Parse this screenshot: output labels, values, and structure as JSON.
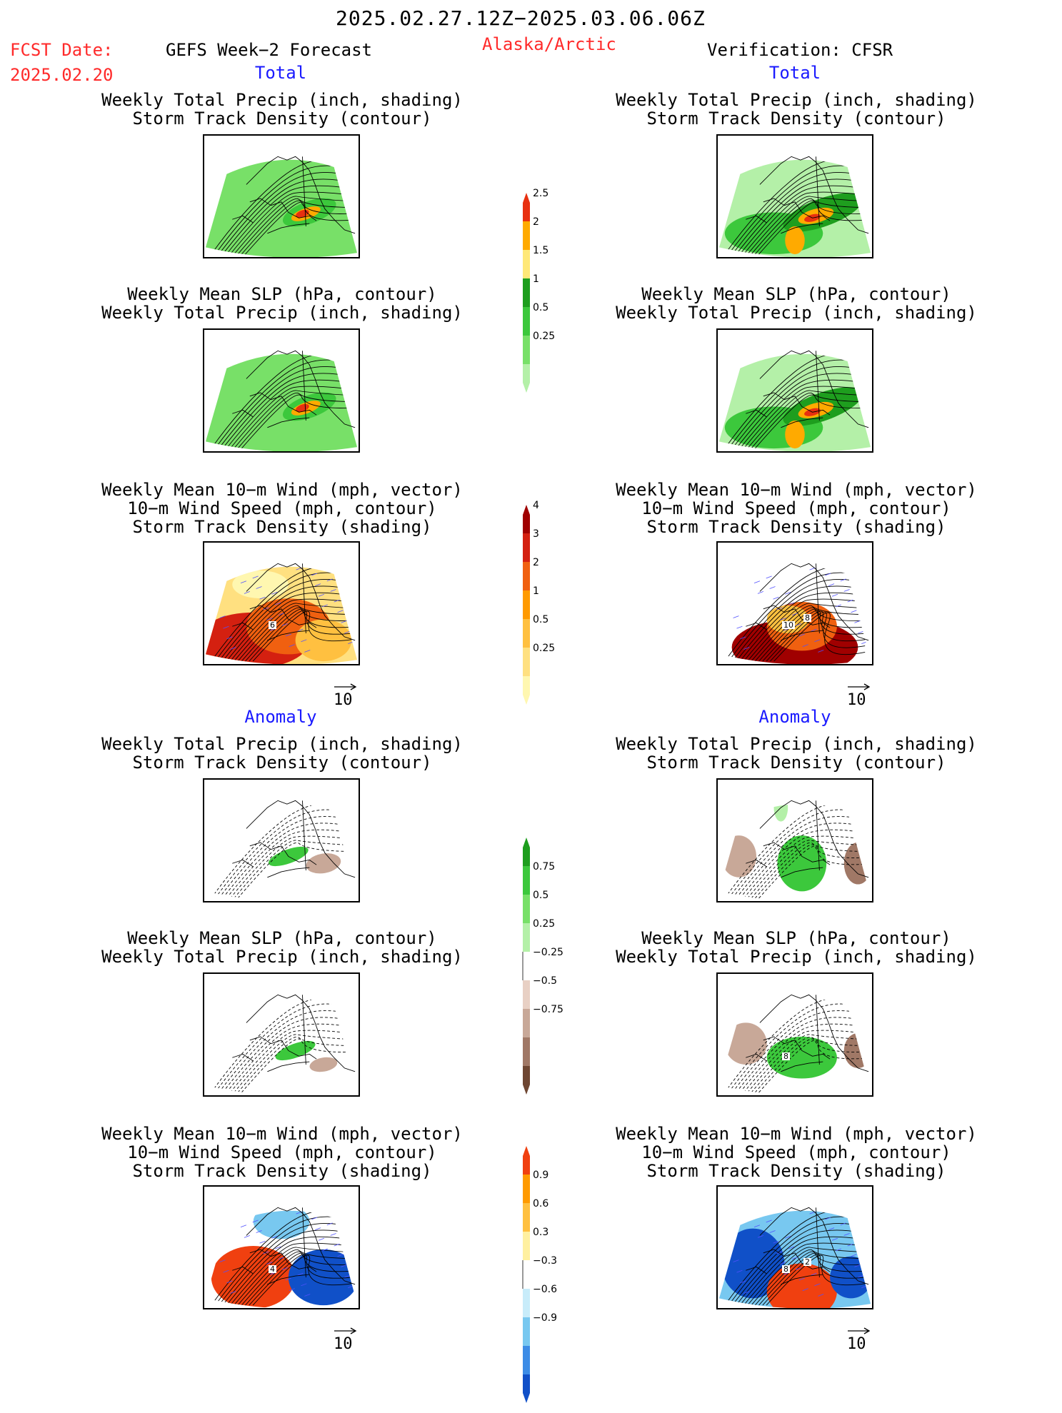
{
  "header": {
    "title": "2025.02.27.12Z−2025.03.06.06Z",
    "fcst_label": "FCST Date:",
    "fcst_date": "2025.02.20",
    "model": "GEFS Week−2 Forecast",
    "region": "Alaska/Arctic",
    "verification": "Verification: CFSR"
  },
  "sections": {
    "total": "Total",
    "anomaly": "Anomaly"
  },
  "labels": {
    "precip_track": [
      "Weekly Total Precip (inch, shading)",
      "Storm Track Density (contour)"
    ],
    "slp_precip": [
      "Weekly Mean SLP (hPa, contour)",
      "Weekly Total Precip (inch, shading)"
    ],
    "wind_track": [
      "Weekly Mean 10−m Wind (mph, vector)",
      "10−m Wind Speed (mph, contour)",
      "Storm Track Density (shading)"
    ],
    "vector_ref": "10"
  },
  "colorbars": [
    {
      "name": "total-precip",
      "ticks": [
        "0.25",
        "0.5",
        "1",
        "1.5",
        "2",
        "2.5"
      ],
      "colors": [
        "#b4f0a8",
        "#78e068",
        "#3cc83c",
        "#1e9e1e",
        "#ffe878",
        "#ffaa00",
        "#e83010"
      ]
    },
    {
      "name": "total-storm",
      "ticks": [
        "0.25",
        "0.5",
        "1",
        "2",
        "3",
        "4"
      ],
      "colors": [
        "#fff7b0",
        "#ffe080",
        "#ffc040",
        "#ff9a00",
        "#f06010",
        "#d42010",
        "#a00000"
      ]
    },
    {
      "name": "anom-precip",
      "ticks": [
        "−0.75",
        "−0.5",
        "−0.25",
        "0.25",
        "0.5",
        "0.75"
      ],
      "colors": [
        "#6e4632",
        "#a07866",
        "#c8a898",
        "#e8d0c4",
        "#ffffff",
        "#b4f0a8",
        "#78e068",
        "#3cc83c",
        "#1e9e1e"
      ]
    },
    {
      "name": "anom-storm",
      "ticks": [
        "−0.9",
        "−0.6",
        "−0.3",
        "0.3",
        "0.6",
        "0.9"
      ],
      "colors": [
        "#1050c8",
        "#3c8ce6",
        "#78c8f0",
        "#c8ecfa",
        "#ffffff",
        "#fff0a0",
        "#ffc040",
        "#ff9a00",
        "#f04010"
      ]
    }
  ],
  "panel_marks": {
    "wind_total_left": "6",
    "wind_total_right_a": "10",
    "wind_total_right_b": "8",
    "wind_anom_left": "4",
    "wind_anom_right_a": "8",
    "wind_anom_right_b": "2",
    "slp_anom_right": "8"
  },
  "chart_data": [
    {
      "type": "heatmap",
      "title": "Weekly Total Precip (inch, shading) / Storm Track Density (contour)",
      "section": "Total",
      "source": "GEFS Week−2 Forecast",
      "values": "map field"
    },
    {
      "type": "heatmap",
      "title": "Weekly Mean SLP (hPa, contour) / Weekly Total Precip (inch, shading)",
      "section": "Total",
      "source": "GEFS Week−2 Forecast",
      "values": "map field"
    },
    {
      "type": "heatmap",
      "title": "Weekly Mean 10−m Wind / Wind Speed / Storm Track Density",
      "section": "Total",
      "source": "GEFS Week−2 Forecast",
      "values": "map field"
    },
    {
      "type": "heatmap",
      "title": "Weekly Total Precip (inch, shading) / Storm Track Density (contour)",
      "section": "Total",
      "source": "Verification: CFSR",
      "values": "map field"
    },
    {
      "type": "heatmap",
      "title": "Weekly Mean SLP (hPa, contour) / Weekly Total Precip (inch, shading)",
      "section": "Total",
      "source": "Verification: CFSR",
      "values": "map field"
    },
    {
      "type": "heatmap",
      "title": "Weekly Mean 10−m Wind / Wind Speed / Storm Track Density",
      "section": "Total",
      "source": "Verification: CFSR",
      "values": "map field"
    },
    {
      "type": "heatmap",
      "title": "Weekly Total Precip (inch, shading) / Storm Track Density (contour)",
      "section": "Anomaly",
      "source": "GEFS Week−2 Forecast",
      "values": "map field"
    },
    {
      "type": "heatmap",
      "title": "Weekly Mean SLP (hPa, contour) / Weekly Total Precip (inch, shading)",
      "section": "Anomaly",
      "source": "GEFS Week−2 Forecast",
      "values": "map field"
    },
    {
      "type": "heatmap",
      "title": "Weekly Mean 10−m Wind / Wind Speed / Storm Track Density",
      "section": "Anomaly",
      "source": "GEFS Week−2 Forecast",
      "values": "map field"
    },
    {
      "type": "heatmap",
      "title": "Weekly Total Precip (inch, shading) / Storm Track Density (contour)",
      "section": "Anomaly",
      "source": "Verification: CFSR",
      "values": "map field"
    },
    {
      "type": "heatmap",
      "title": "Weekly Mean SLP (hPa, contour) / Weekly Total Precip (inch, shading)",
      "section": "Anomaly",
      "source": "Verification: CFSR",
      "values": "map field"
    },
    {
      "type": "heatmap",
      "title": "Weekly Mean 10−m Wind / Wind Speed / Storm Track Density",
      "section": "Anomaly",
      "source": "Verification: CFSR",
      "values": "map field"
    }
  ]
}
